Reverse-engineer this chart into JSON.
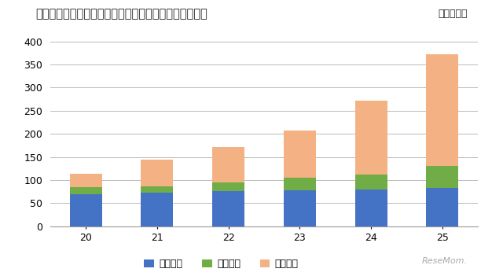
{
  "years": [
    "20",
    "21",
    "22",
    "23",
    "24",
    "25"
  ],
  "kokuritsu": [
    70,
    73,
    76,
    78,
    80,
    83
  ],
  "kouritsu": [
    15,
    14,
    19,
    27,
    32,
    47
  ],
  "shiritsu": [
    28,
    58,
    76,
    103,
    160,
    243
  ],
  "color_kokuritsu": "#4472C4",
  "color_kouritsu": "#70AD47",
  "color_shiritsu": "#F4B183",
  "title": "・機関リポジトリを構築（公開）している大学数の推移",
  "unit_label": "単位：大学",
  "ylim": [
    0,
    400
  ],
  "yticks": [
    0,
    50,
    100,
    150,
    200,
    250,
    300,
    350,
    400
  ],
  "legend_kokuritsu": "国立大学",
  "legend_kouritsu": "公立大学",
  "legend_shiritsu": "私立大学",
  "bg_color": "#FFFFFF",
  "plot_bg_color": "#FFFFFF",
  "grid_color": "#BBBBBB",
  "title_fontsize": 10.5,
  "tick_fontsize": 9,
  "legend_fontsize": 9,
  "unit_fontsize": 9
}
